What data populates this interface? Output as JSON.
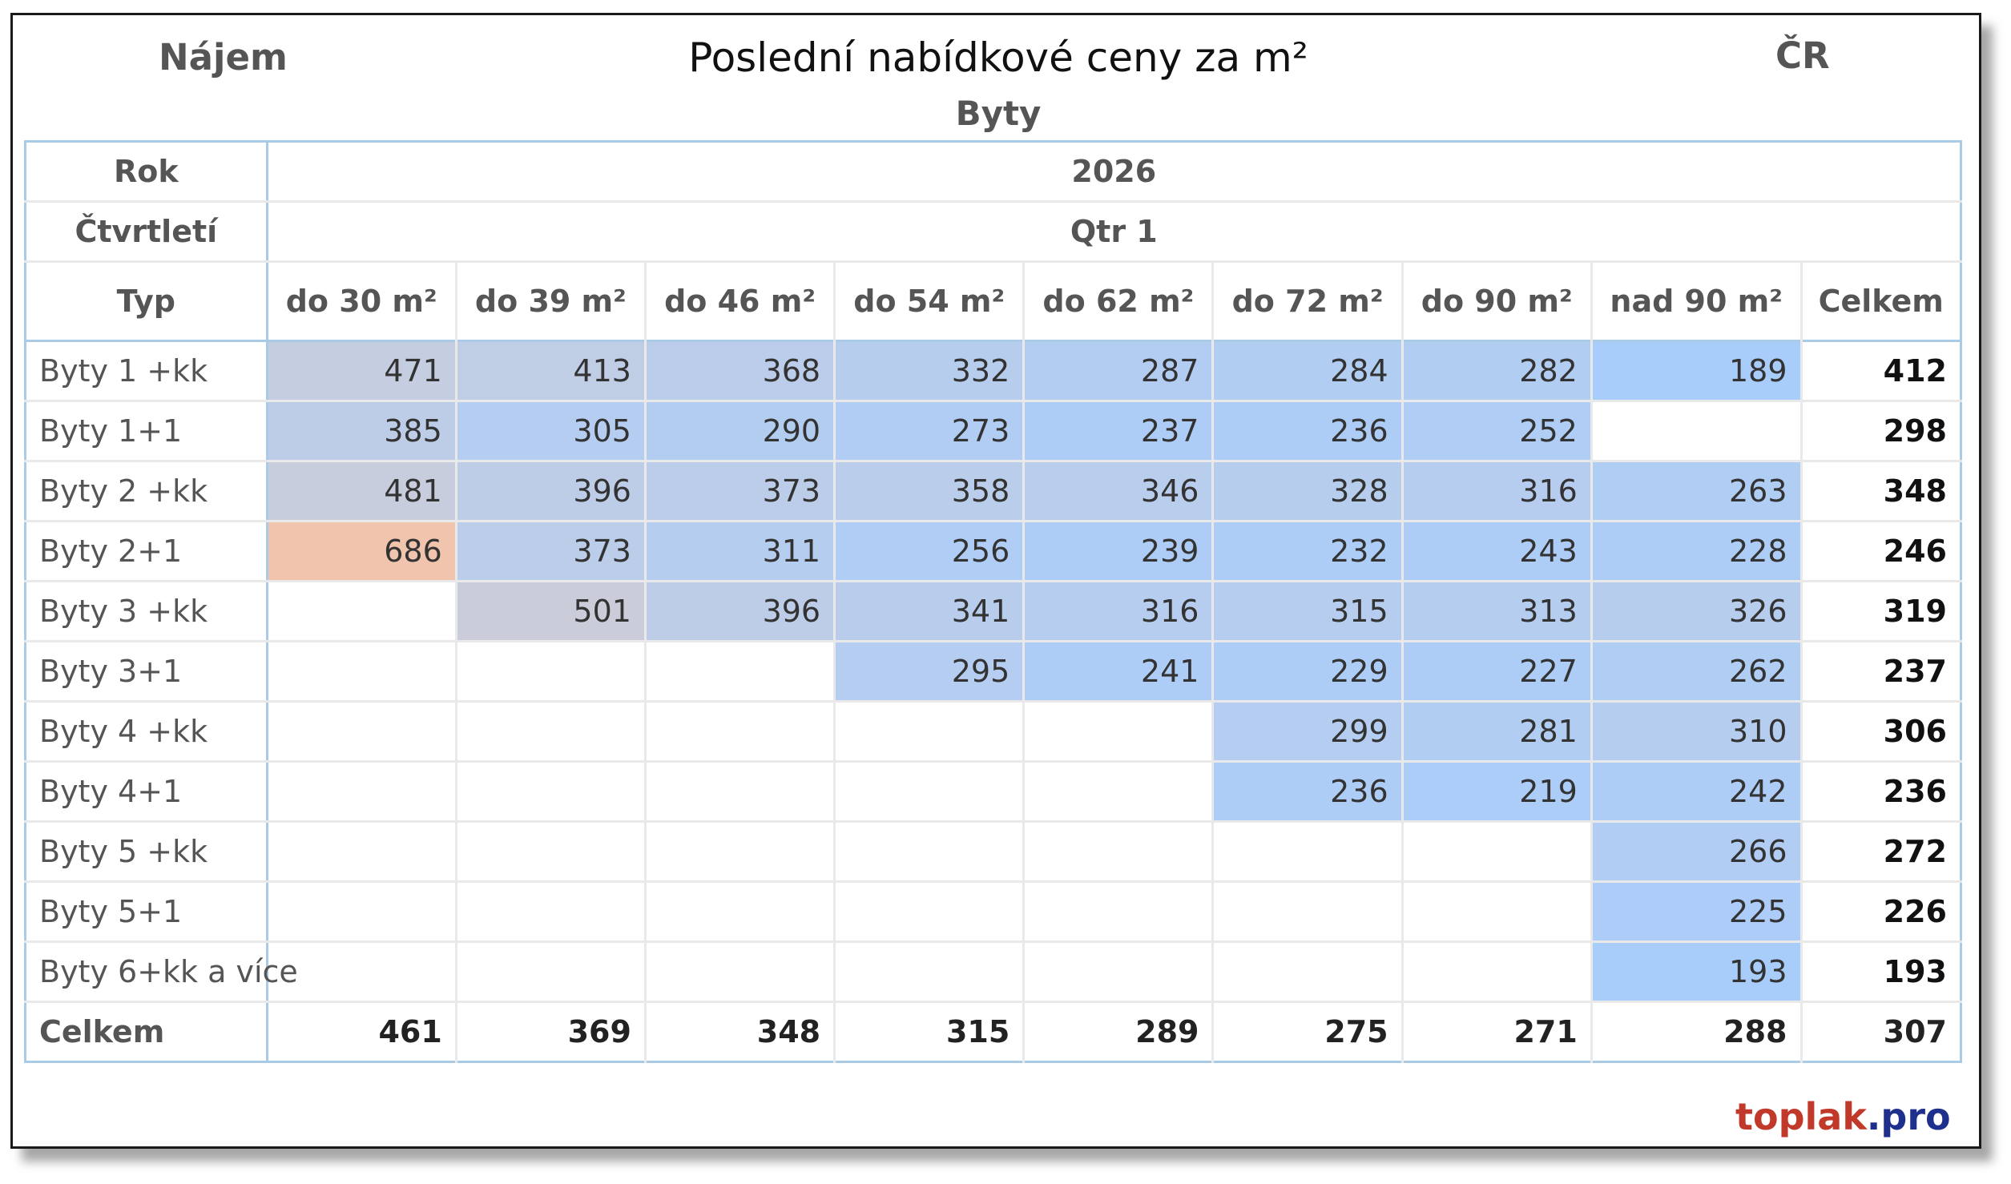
{
  "header": {
    "left_label": "Nájem",
    "right_label": "ČR",
    "title": "Poslední nabídkové ceny za m²",
    "subtitle": "Byty"
  },
  "brand": {
    "part1": "toplak",
    "part2": ".pro",
    "color1": "#c0392b",
    "color2": "#1f2f8c"
  },
  "chart_data": {
    "type": "table",
    "title": "Poslední nabídkové ceny za m²",
    "subtitle": "Byty",
    "header_rows": [
      {
        "label": "Rok",
        "value": "2026"
      },
      {
        "label": "Čtvrtletí",
        "value": "Qtr 1"
      }
    ],
    "type_label": "Typ",
    "columns": [
      "do 30 m²",
      "do 39 m²",
      "do 46 m²",
      "do 54 m²",
      "do 62 m²",
      "do 72 m²",
      "do 90 m²",
      "nad 90 m²",
      "Celkem"
    ],
    "rows": [
      {
        "label": "Byty 1 +kk",
        "values": [
          471,
          413,
          368,
          332,
          287,
          284,
          282,
          189
        ],
        "total": 412
      },
      {
        "label": "Byty 1+1",
        "values": [
          385,
          305,
          290,
          273,
          237,
          236,
          252,
          null
        ],
        "total": 298
      },
      {
        "label": "Byty 2 +kk",
        "values": [
          481,
          396,
          373,
          358,
          346,
          328,
          316,
          263
        ],
        "total": 348
      },
      {
        "label": "Byty 2+1",
        "values": [
          686,
          373,
          311,
          256,
          239,
          232,
          243,
          228
        ],
        "total": 246
      },
      {
        "label": "Byty 3 +kk",
        "values": [
          null,
          501,
          396,
          341,
          316,
          315,
          313,
          326
        ],
        "total": 319
      },
      {
        "label": "Byty 3+1",
        "values": [
          null,
          null,
          null,
          295,
          241,
          229,
          227,
          262
        ],
        "total": 237
      },
      {
        "label": "Byty 4 +kk",
        "values": [
          null,
          null,
          null,
          null,
          null,
          299,
          281,
          310
        ],
        "total": 306
      },
      {
        "label": "Byty 4+1",
        "values": [
          null,
          null,
          null,
          null,
          null,
          236,
          219,
          242
        ],
        "total": 236
      },
      {
        "label": "Byty 5 +kk",
        "values": [
          null,
          null,
          null,
          null,
          null,
          null,
          null,
          266
        ],
        "total": 272
      },
      {
        "label": "Byty 5+1",
        "values": [
          null,
          null,
          null,
          null,
          null,
          null,
          null,
          225
        ],
        "total": 226
      },
      {
        "label": "Byty 6+kk a více",
        "values": [
          null,
          null,
          null,
          null,
          null,
          null,
          null,
          193
        ],
        "total": 193
      }
    ],
    "footer": {
      "label": "Celkem",
      "values": [
        461,
        369,
        348,
        315,
        289,
        275,
        271,
        288
      ],
      "total": 307
    },
    "color_scale": {
      "low": "#a9cdfb",
      "mid": "#c5cde0",
      "high": "#f0c4ad",
      "min": 189,
      "max": 686
    }
  }
}
